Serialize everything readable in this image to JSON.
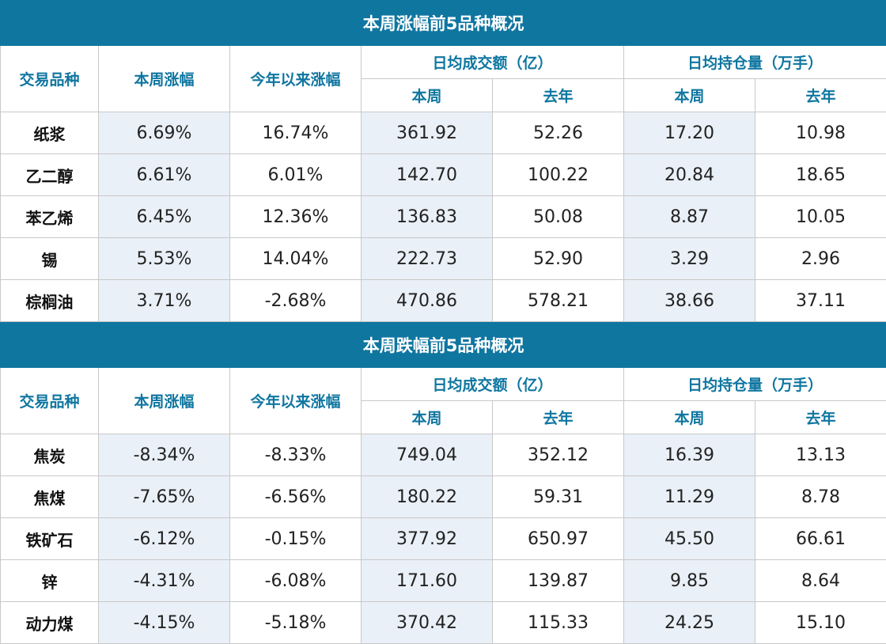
{
  "headers": {
    "variety": "交易品种",
    "week_change": "本周涨幅",
    "ytd_change": "今年以来涨幅",
    "avg_turnover": "日均成交额（亿）",
    "avg_open_interest": "日均持仓量（万手）",
    "this_week": "本周",
    "last_year": "去年"
  },
  "gainers": {
    "title": "本周涨幅前5品种概况",
    "rows": [
      {
        "name": "纸浆",
        "week": "6.69%",
        "ytd": "16.74%",
        "turnover_week": "361.92",
        "turnover_last_year": "52.26",
        "oi_week": "17.20",
        "oi_last_year": "10.98"
      },
      {
        "name": "乙二醇",
        "week": "6.61%",
        "ytd": "6.01%",
        "turnover_week": "142.70",
        "turnover_last_year": "100.22",
        "oi_week": "20.84",
        "oi_last_year": "18.65"
      },
      {
        "name": "苯乙烯",
        "week": "6.45%",
        "ytd": "12.36%",
        "turnover_week": "136.83",
        "turnover_last_year": "50.08",
        "oi_week": "8.87",
        "oi_last_year": "10.05"
      },
      {
        "name": "锡",
        "week": "5.53%",
        "ytd": "14.04%",
        "turnover_week": "222.73",
        "turnover_last_year": "52.90",
        "oi_week": "3.29",
        "oi_last_year": "2.96"
      },
      {
        "name": "棕榈油",
        "week": "3.71%",
        "ytd": "-2.68%",
        "turnover_week": "470.86",
        "turnover_last_year": "578.21",
        "oi_week": "38.66",
        "oi_last_year": "37.11"
      }
    ]
  },
  "losers": {
    "title": "本周跌幅前5品种概况",
    "rows": [
      {
        "name": "焦炭",
        "week": "-8.34%",
        "ytd": "-8.33%",
        "turnover_week": "749.04",
        "turnover_last_year": "352.12",
        "oi_week": "16.39",
        "oi_last_year": "13.13"
      },
      {
        "name": "焦煤",
        "week": "-7.65%",
        "ytd": "-6.56%",
        "turnover_week": "180.22",
        "turnover_last_year": "59.31",
        "oi_week": "11.29",
        "oi_last_year": "8.78"
      },
      {
        "name": "铁矿石",
        "week": "-6.12%",
        "ytd": "-0.15%",
        "turnover_week": "377.92",
        "turnover_last_year": "650.97",
        "oi_week": "45.50",
        "oi_last_year": "66.61"
      },
      {
        "name": "锌",
        "week": "-4.31%",
        "ytd": "-6.08%",
        "turnover_week": "171.60",
        "turnover_last_year": "139.87",
        "oi_week": "9.85",
        "oi_last_year": "8.64"
      },
      {
        "name": "动力煤",
        "week": "-4.15%",
        "ytd": "-5.18%",
        "turnover_week": "370.42",
        "turnover_last_year": "115.33",
        "oi_week": "24.25",
        "oi_last_year": "15.10"
      }
    ]
  },
  "colors": {
    "banner": "#0f76a0",
    "header_text": "#0f76a0",
    "shaded_row": "#eaf0f7",
    "border": "#c8c8c8"
  }
}
